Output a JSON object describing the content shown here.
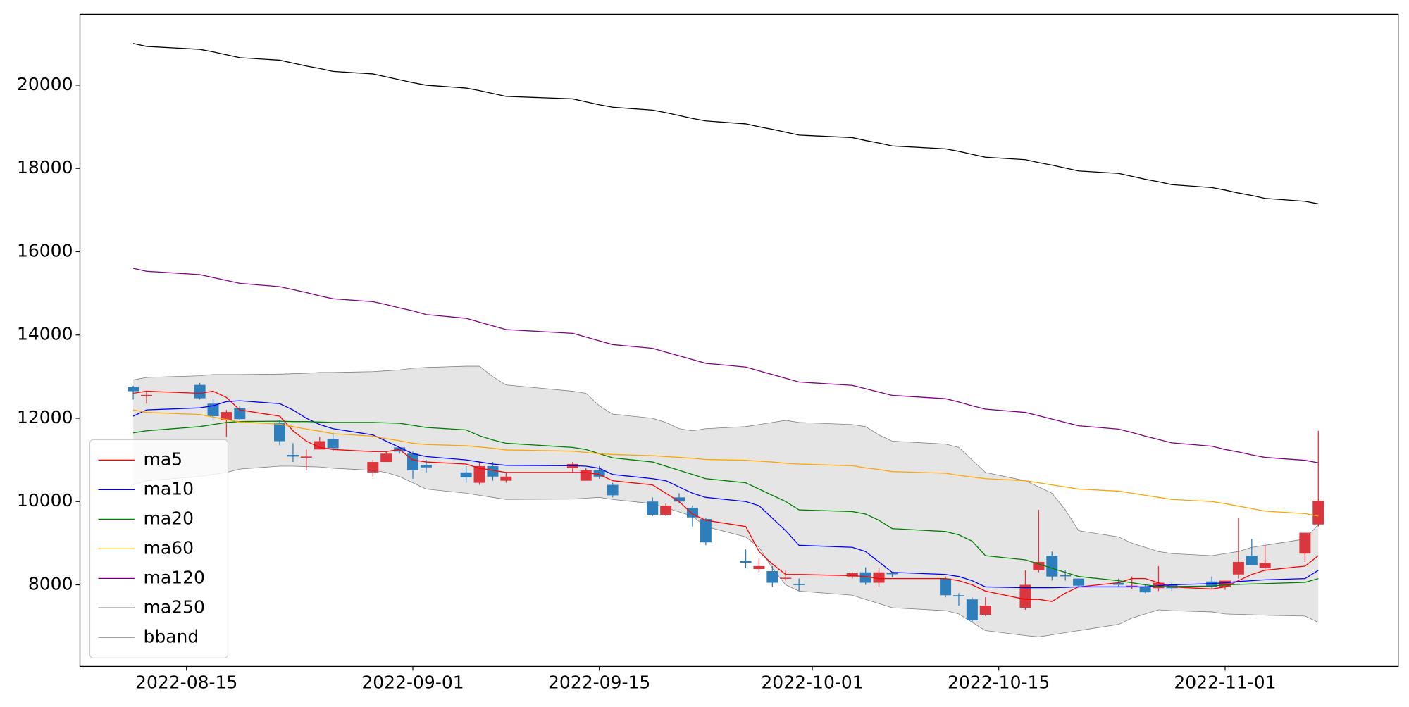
{
  "chart_data": {
    "type": "candlestick",
    "x": [
      "2022-08-11",
      "2022-08-12",
      "2022-08-16",
      "2022-08-17",
      "2022-08-18",
      "2022-08-19",
      "2022-08-22",
      "2022-08-23",
      "2022-08-24",
      "2022-08-25",
      "2022-08-26",
      "2022-08-29",
      "2022-08-30",
      "2022-08-31",
      "2022-09-01",
      "2022-09-02",
      "2022-09-05",
      "2022-09-06",
      "2022-09-07",
      "2022-09-08",
      "2022-09-13",
      "2022-09-14",
      "2022-09-15",
      "2022-09-16",
      "2022-09-19",
      "2022-09-20",
      "2022-09-21",
      "2022-09-22",
      "2022-09-23",
      "2022-09-26",
      "2022-09-27",
      "2022-09-28",
      "2022-09-29",
      "2022-09-30",
      "2022-10-04",
      "2022-10-05",
      "2022-10-06",
      "2022-10-07",
      "2022-10-11",
      "2022-10-12",
      "2022-10-13",
      "2022-10-14",
      "2022-10-17",
      "2022-10-18",
      "2022-10-19",
      "2022-10-20",
      "2022-10-21",
      "2022-10-24",
      "2022-10-25",
      "2022-10-26",
      "2022-10-27",
      "2022-10-28",
      "2022-10-31",
      "2022-11-01",
      "2022-11-02",
      "2022-11-03",
      "2022-11-04",
      "2022-11-07",
      "2022-11-08"
    ],
    "ohlc": {
      "up_color": "#d9363e",
      "down_color": "#2f7ebc",
      "open": [
        12750,
        12550,
        12800,
        12350,
        11950,
        12250,
        11900,
        11120,
        11050,
        11250,
        11500,
        10700,
        10950,
        11300,
        11150,
        10880,
        10700,
        10450,
        10850,
        10500,
        10800,
        10500,
        10750,
        10400,
        10000,
        9680,
        10100,
        9850,
        9580,
        8580,
        8380,
        8330,
        8150,
        8020,
        8200,
        8300,
        8050,
        8280,
        8150,
        7750,
        7650,
        7280,
        7450,
        8350,
        8700,
        8230,
        8150,
        8050,
        7950,
        7950,
        7920,
        8000,
        8080,
        7950,
        8250,
        8700,
        8400,
        8750,
        9450
      ],
      "high": [
        12780,
        12650,
        12850,
        12450,
        12200,
        12300,
        11950,
        11400,
        11250,
        11550,
        11650,
        11000,
        11200,
        11300,
        11200,
        11000,
        10850,
        10950,
        10950,
        10700,
        10950,
        10800,
        10850,
        10450,
        10100,
        9950,
        10200,
        9900,
        9600,
        8850,
        8650,
        8450,
        8350,
        8150,
        8300,
        8420,
        8400,
        8300,
        8200,
        7800,
        7700,
        7700,
        8350,
        9800,
        8800,
        8350,
        8150,
        8150,
        8200,
        8000,
        8450,
        8050,
        8200,
        8100,
        9600,
        9100,
        8950,
        9250,
        11700
      ],
      "low": [
        12450,
        12350,
        12450,
        11950,
        11550,
        11950,
        11350,
        10950,
        10750,
        11250,
        11200,
        10600,
        10950,
        11150,
        10550,
        10700,
        10450,
        10400,
        10500,
        10450,
        10700,
        10500,
        10550,
        10100,
        9650,
        9650,
        9950,
        9400,
        8950,
        8400,
        8300,
        7950,
        8100,
        7850,
        8150,
        8000,
        7950,
        8180,
        7700,
        7500,
        7100,
        7250,
        7400,
        8300,
        8100,
        8100,
        7950,
        7950,
        7900,
        7800,
        7850,
        7850,
        7900,
        7880,
        8150,
        8500,
        8350,
        8550,
        9400
      ],
      "close": [
        12650,
        12560,
        12480,
        12050,
        12150,
        11980,
        11450,
        11080,
        11080,
        11450,
        11280,
        10950,
        11150,
        11200,
        10750,
        10820,
        10580,
        10850,
        10600,
        10600,
        10900,
        10750,
        10600,
        10150,
        9680,
        9900,
        10000,
        9620,
        9020,
        8530,
        8450,
        8050,
        8170,
        8000,
        8280,
        8050,
        8300,
        8260,
        7750,
        7740,
        7150,
        7500,
        8000,
        8550,
        8200,
        8220,
        7980,
        8000,
        7980,
        7820,
        8050,
        7920,
        7950,
        8100,
        8550,
        8470,
        8530,
        9250,
        10020
      ]
    },
    "series": [
      {
        "name": "ma5",
        "color": "#ff0000",
        "values": [
          12600,
          12650,
          12600,
          12650,
          12500,
          12200,
          12050,
          11700,
          11450,
          11300,
          11250,
          11200,
          11200,
          11250,
          11000,
          10950,
          10900,
          10800,
          10750,
          10700,
          10700,
          10700,
          10650,
          10500,
          10400,
          10200,
          10000,
          9700,
          9550,
          9400,
          8800,
          8500,
          8250,
          8250,
          8220,
          8200,
          8150,
          8150,
          8150,
          8100,
          8000,
          7850,
          7650,
          7650,
          7600,
          7800,
          7950,
          8050,
          8150,
          8150,
          8050,
          7950,
          7900,
          7950,
          8100,
          8250,
          8350,
          8450,
          8700
        ]
      },
      {
        "name": "ma10",
        "color": "#0000ff",
        "values": [
          12050,
          12200,
          12250,
          12300,
          12400,
          12420,
          12350,
          12200,
          12000,
          11850,
          11750,
          11600,
          11450,
          11300,
          11150,
          11080,
          11000,
          10950,
          10900,
          10870,
          10860,
          10850,
          10800,
          10650,
          10550,
          10500,
          10350,
          10200,
          10100,
          10000,
          9900,
          9600,
          9300,
          8950,
          8900,
          8800,
          8550,
          8300,
          8250,
          8200,
          8100,
          7950,
          7930,
          7930,
          7930,
          7940,
          7950,
          7950,
          7950,
          7950,
          7980,
          8000,
          8030,
          8050,
          8080,
          8100,
          8120,
          8150,
          8350
        ]
      },
      {
        "name": "ma20",
        "color": "#008000",
        "values": [
          11650,
          11700,
          11800,
          11850,
          11900,
          11920,
          11930,
          11920,
          11920,
          11910,
          11900,
          11900,
          11890,
          11880,
          11830,
          11780,
          11720,
          11580,
          11480,
          11400,
          11300,
          11250,
          11150,
          11050,
          10950,
          10850,
          10750,
          10650,
          10550,
          10450,
          10300,
          10150,
          10000,
          9800,
          9760,
          9700,
          9550,
          9350,
          9280,
          9200,
          9050,
          8700,
          8600,
          8500,
          8400,
          8300,
          8200,
          8100,
          8050,
          8000,
          7960,
          7960,
          7970,
          8000,
          8010,
          8020,
          8030,
          8060,
          8150
        ]
      },
      {
        "name": "ma60",
        "color": "#ffa500",
        "values": [
          12200,
          12140,
          12090,
          12030,
          11970,
          11910,
          11860,
          11800,
          11740,
          11690,
          11630,
          11570,
          11510,
          11460,
          11400,
          11370,
          11340,
          11310,
          11280,
          11240,
          11210,
          11180,
          11150,
          11130,
          11100,
          11080,
          11060,
          11040,
          11010,
          10990,
          10970,
          10950,
          10920,
          10900,
          10860,
          10810,
          10770,
          10720,
          10680,
          10630,
          10590,
          10550,
          10500,
          10450,
          10400,
          10350,
          10300,
          10250,
          10200,
          10150,
          10100,
          10050,
          10000,
          9950,
          9890,
          9830,
          9770,
          9710,
          9650
        ]
      },
      {
        "name": "ma120",
        "color": "#800080",
        "values": [
          15600,
          15530,
          15450,
          15380,
          15310,
          15240,
          15160,
          15090,
          15020,
          14940,
          14870,
          14800,
          14730,
          14650,
          14580,
          14490,
          14400,
          14310,
          14220,
          14130,
          14040,
          13950,
          13860,
          13770,
          13680,
          13590,
          13500,
          13410,
          13320,
          13230,
          13140,
          13050,
          12960,
          12870,
          12790,
          12710,
          12630,
          12550,
          12470,
          12390,
          12300,
          12220,
          12140,
          12060,
          11980,
          11900,
          11820,
          11740,
          11660,
          11570,
          11490,
          11410,
          11330,
          11250,
          11190,
          11120,
          11060,
          10990,
          10930
        ]
      },
      {
        "name": "ma250",
        "color": "#000000",
        "values": [
          21000,
          20930,
          20860,
          20800,
          20730,
          20660,
          20600,
          20530,
          20460,
          20400,
          20330,
          20270,
          20200,
          20130,
          20060,
          20000,
          19930,
          19870,
          19800,
          19730,
          19670,
          19600,
          19530,
          19470,
          19400,
          19340,
          19270,
          19200,
          19140,
          19070,
          19000,
          18940,
          18870,
          18800,
          18740,
          18670,
          18610,
          18540,
          18470,
          18410,
          18340,
          18270,
          18210,
          18140,
          18080,
          18010,
          17940,
          17880,
          17810,
          17740,
          17680,
          17610,
          17540,
          17480,
          17410,
          17350,
          17280,
          17210,
          17150
        ]
      }
    ],
    "bband": {
      "name": "bband",
      "color": "#808080",
      "fill": "#e5e5e5",
      "upper": [
        12920,
        12980,
        13020,
        13050,
        13050,
        13050,
        13060,
        13070,
        13080,
        13100,
        13100,
        13120,
        13140,
        13160,
        13200,
        13220,
        13250,
        13250,
        13000,
        12800,
        12650,
        12600,
        12300,
        12100,
        12000,
        11900,
        11750,
        11700,
        11750,
        11800,
        11850,
        11900,
        11950,
        11900,
        11850,
        11800,
        11600,
        11450,
        11380,
        11300,
        11000,
        10700,
        10500,
        10350,
        10200,
        9800,
        9300,
        9150,
        9000,
        8900,
        8800,
        8750,
        8700,
        8750,
        8800,
        8900,
        8950,
        9100,
        9450
      ],
      "lower": [
        10400,
        10500,
        10600,
        10650,
        10700,
        10780,
        10850,
        10850,
        10840,
        10830,
        10800,
        10750,
        10700,
        10600,
        10450,
        10300,
        10200,
        10150,
        10100,
        10050,
        10060,
        10080,
        10100,
        10050,
        9950,
        9850,
        9750,
        9650,
        9400,
        9150,
        8900,
        8400,
        8000,
        7850,
        7750,
        7650,
        7550,
        7450,
        7380,
        7300,
        7100,
        6900,
        6780,
        6750,
        6800,
        6850,
        6900,
        7050,
        7200,
        7300,
        7400,
        7380,
        7350,
        7300,
        7290,
        7280,
        7270,
        7250,
        7100
      ]
    },
    "xlim": [
      "2022-08-07",
      "2022-11-14"
    ],
    "xticks": [
      "2022-08-15",
      "2022-09-01",
      "2022-09-15",
      "2022-10-01",
      "2022-10-15",
      "2022-11-01"
    ],
    "ylim": [
      6040,
      21700
    ],
    "yticks": [
      8000,
      10000,
      12000,
      14000,
      16000,
      18000,
      20000
    ],
    "legend": "lower left"
  }
}
